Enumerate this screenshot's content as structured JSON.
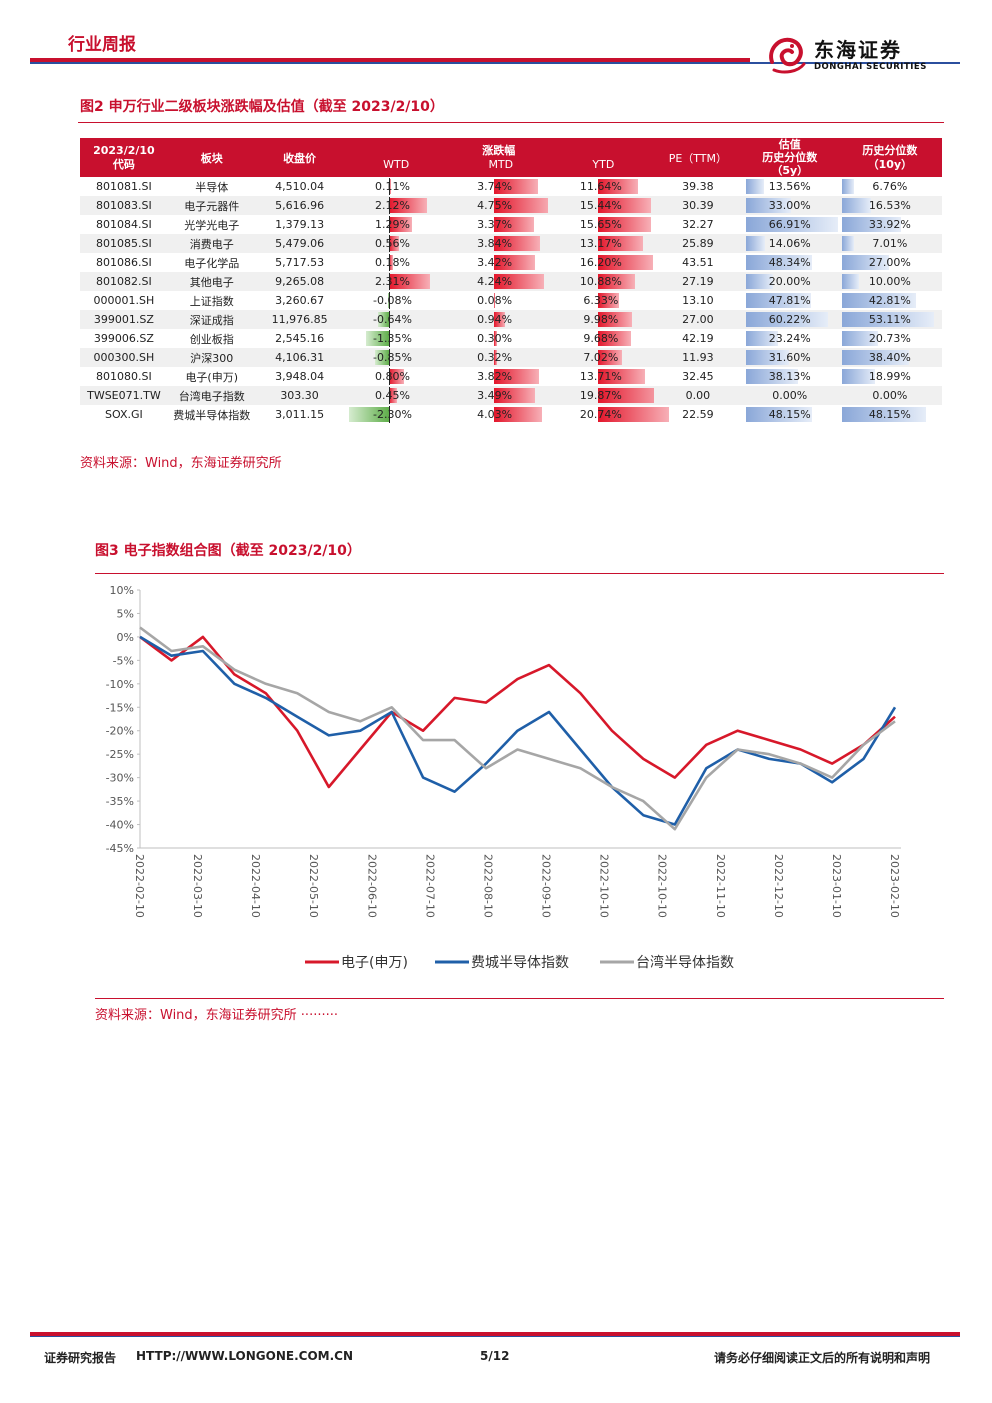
{
  "header": {
    "title": "行业周报",
    "logo_cn": "东海证券",
    "logo_en": "DONGHAI SECURITIES"
  },
  "fig2": {
    "title": "图2 申万行业二级板块涨跌幅及估值（截至 2023/2/10）",
    "head": {
      "date": "2023/2/10",
      "code": "代码",
      "sector": "板块",
      "close": "收盘价",
      "change_group": "涨跌幅",
      "wtd": "WTD",
      "mtd": "MTD",
      "ytd": "YTD",
      "pe": "PE（TTM）",
      "val_group": "估值",
      "p5": "历史分位数（5y）",
      "p10": "历史分位数（10y）"
    },
    "rows": [
      {
        "code": "801081.SI",
        "name": "半导体",
        "close": "4,510.04",
        "wtd": "0.11%",
        "mtd": "3.74%",
        "ytd": "11.64%",
        "pe": "39.38",
        "p5": "13.56%",
        "p10": "6.76%"
      },
      {
        "code": "801083.SI",
        "name": "电子元器件",
        "close": "5,616.96",
        "wtd": "2.12%",
        "mtd": "4.75%",
        "ytd": "15.44%",
        "pe": "30.39",
        "p5": "33.00%",
        "p10": "16.53%"
      },
      {
        "code": "801084.SI",
        "name": "光学光电子",
        "close": "1,379.13",
        "wtd": "1.29%",
        "mtd": "3.37%",
        "ytd": "15.65%",
        "pe": "32.27",
        "p5": "66.91%",
        "p10": "33.92%"
      },
      {
        "code": "801085.SI",
        "name": "消费电子",
        "close": "5,479.06",
        "wtd": "0.56%",
        "mtd": "3.84%",
        "ytd": "13.17%",
        "pe": "25.89",
        "p5": "14.06%",
        "p10": "7.01%"
      },
      {
        "code": "801086.SI",
        "name": "电子化学品",
        "close": "5,717.53",
        "wtd": "0.18%",
        "mtd": "3.42%",
        "ytd": "16.20%",
        "pe": "43.51",
        "p5": "48.34%",
        "p10": "27.00%"
      },
      {
        "code": "801082.SI",
        "name": "其他电子",
        "close": "9,265.08",
        "wtd": "2.31%",
        "mtd": "4.24%",
        "ytd": "10.88%",
        "pe": "27.19",
        "p5": "20.00%",
        "p10": "10.00%"
      },
      {
        "code": "000001.SH",
        "name": "上证指数",
        "close": "3,260.67",
        "wtd": "-0.08%",
        "mtd": "0.08%",
        "ytd": "6.33%",
        "pe": "13.10",
        "p5": "47.81%",
        "p10": "42.81%"
      },
      {
        "code": "399001.SZ",
        "name": "深证成指",
        "close": "11,976.85",
        "wtd": "-0.64%",
        "mtd": "0.94%",
        "ytd": "9.98%",
        "pe": "27.00",
        "p5": "60.22%",
        "p10": "53.11%"
      },
      {
        "code": "399006.SZ",
        "name": "创业板指",
        "close": "2,545.16",
        "wtd": "-1.35%",
        "mtd": "0.30%",
        "ytd": "9.68%",
        "pe": "42.19",
        "p5": "23.24%",
        "p10": "20.73%"
      },
      {
        "code": "000300.SH",
        "name": "沪深300",
        "close": "4,106.31",
        "wtd": "-0.85%",
        "mtd": "0.32%",
        "ytd": "7.02%",
        "pe": "11.93",
        "p5": "31.60%",
        "p10": "38.40%"
      },
      {
        "code": "801080.SI",
        "name": "电子(申万)",
        "close": "3,948.04",
        "wtd": "0.80%",
        "mtd": "3.82%",
        "ytd": "13.71%",
        "pe": "32.45",
        "p5": "38.13%",
        "p10": "18.99%"
      },
      {
        "code": "TWSE071.TW",
        "name": "台湾电子指数",
        "close": "303.30",
        "wtd": "0.45%",
        "mtd": "3.49%",
        "ytd": "19.87%",
        "pe": "0.00",
        "p5": "0.00%",
        "p10": "0.00%"
      },
      {
        "code": "SOX.GI",
        "name": "费城半导体指数",
        "close": "3,011.15",
        "wtd": "-2.30%",
        "mtd": "4.03%",
        "ytd": "20.74%",
        "pe": "22.59",
        "p5": "48.15%",
        "p10": "48.15%"
      }
    ],
    "source": "资料来源：Wind，东海证券研究所"
  },
  "fig3": {
    "title": "图3 电子指数组合图（截至 2023/2/10）",
    "source": "资料来源：Wind，东海证券研究所 ·········"
  },
  "chart_data": {
    "type": "line",
    "x": [
      "2022-02-10",
      "2022-02-24",
      "2022-03-10",
      "2022-03-24",
      "2022-04-10",
      "2022-04-24",
      "2022-05-10",
      "2022-05-24",
      "2022-06-10",
      "2022-06-24",
      "2022-07-10",
      "2022-07-24",
      "2022-08-10",
      "2022-08-24",
      "2022-09-10",
      "2022-09-24",
      "2022-10-10",
      "2022-10-24",
      "2022-11-10",
      "2022-11-24",
      "2022-12-10",
      "2022-12-24",
      "2023-01-10",
      "2023-01-24",
      "2023-02-10"
    ],
    "x_ticks": [
      "2022-02-10",
      "2022-03-10",
      "2022-04-10",
      "2022-05-10",
      "2022-06-10",
      "2022-07-10",
      "2022-08-10",
      "2022-09-10",
      "2022-10-10",
      "2022-10-10",
      "2022-11-10",
      "2022-12-10",
      "2023-01-10",
      "2023-02-10"
    ],
    "y_ticks": [
      "10%",
      "5%",
      "0%",
      "-5%",
      "-10%",
      "-15%",
      "-20%",
      "-25%",
      "-30%",
      "-35%",
      "-40%",
      "-45%"
    ],
    "ylim": [
      -45,
      10
    ],
    "series": [
      {
        "name": "电子(申万)",
        "color": "#d7182a",
        "values": [
          0,
          -5,
          0,
          -8,
          -12,
          -20,
          -32,
          -24,
          -16,
          -20,
          -13,
          -14,
          -9,
          -6,
          -12,
          -20,
          -26,
          -30,
          -23,
          -20,
          -22,
          -24,
          -27,
          -23,
          -17
        ]
      },
      {
        "name": "费城半导体指数",
        "color": "#1f5fa8",
        "values": [
          0,
          -4,
          -3,
          -10,
          -13,
          -17,
          -21,
          -20,
          -16,
          -30,
          -33,
          -27,
          -20,
          -16,
          -24,
          -32,
          -38,
          -40,
          -28,
          -24,
          -26,
          -27,
          -31,
          -26,
          -15
        ]
      },
      {
        "name": "台湾半导体指数",
        "color": "#a6a6a6",
        "values": [
          2,
          -3,
          -2,
          -7,
          -10,
          -12,
          -16,
          -18,
          -15,
          -22,
          -22,
          -28,
          -24,
          -26,
          -28,
          -32,
          -35,
          -41,
          -30,
          -24,
          -25,
          -27,
          -30,
          -23,
          -18
        ]
      }
    ]
  },
  "footer": {
    "left": "证券研究报告",
    "url": "HTTP://WWW.LONGONE.COM.CN",
    "page": "5/12",
    "right": "请务必仔细阅读正文后的所有说明和声明"
  }
}
